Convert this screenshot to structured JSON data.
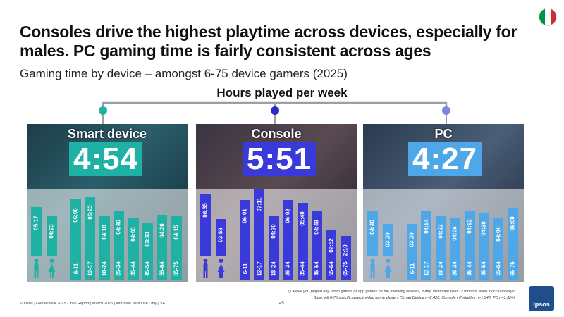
{
  "headline": "Consoles drive the highest playtime across devices, especially for males. PC gaming time is fairly consistent across ages",
  "subtitle": "Gaming time by device – amongst 6-75 device gamers (2025)",
  "hours_title": "Hours played per week",
  "flag_colors": [
    "#009246",
    "#ffffff",
    "#ce2b37"
  ],
  "footer": {
    "left": "© Ipsos | GameTrack 2025 - Italy Report | March 2026 | Internal/Client Use Only | V4",
    "page": "45",
    "question": "Q. Have you played any video games or app games on the following devices, if any, within the past 12 months, even if occasionally?",
    "base": "Base: All 6-75 specific device video game players (Smart Device n=2,428, Console / Portables n=1,540, PC n=1,324)",
    "logo": "Ipsos"
  },
  "chart_data": {
    "type": "bar",
    "title": "Hours played per week",
    "categories": [
      "Male",
      "Female",
      "6-11",
      "12-17",
      "18-24",
      "25-34",
      "35-44",
      "45-54",
      "55-64",
      "65-75"
    ],
    "category_labels": [
      "",
      "",
      "6-11",
      "12-17",
      "18-24",
      "25-34",
      "35-44",
      "45-54",
      "55-64",
      "65-75"
    ],
    "value_unit": "hours per week (h:mm)",
    "panels": [
      {
        "name": "Smart device",
        "total": "4:54",
        "color": "#1fb2a4",
        "node_color": "#1fb2a4",
        "labels": [
          "05:17",
          "04:23",
          "06:06",
          "06:23",
          "04:18",
          "04:46",
          "04:03",
          "03:33",
          "04:26",
          "04:15"
        ],
        "values": [
          5.28,
          4.38,
          6.1,
          6.38,
          4.3,
          4.77,
          4.05,
          3.55,
          4.43,
          4.25
        ]
      },
      {
        "name": "Console",
        "total": "5:51",
        "color": "#3a3adb",
        "node_color": "#2d2ac4",
        "labels": [
          "06:35",
          "03:59",
          "06:01",
          "07:11",
          "04:20",
          "06:02",
          "05:40",
          "04:49",
          "02:52",
          "02:10"
        ],
        "values": [
          6.58,
          3.98,
          6.02,
          7.18,
          4.33,
          6.03,
          5.67,
          4.82,
          2.87,
          2.17
        ]
      },
      {
        "name": "PC",
        "total": "4:27",
        "color": "#4ea8e8",
        "node_color": "#7b86e6",
        "labels": [
          "04:46",
          "03:29",
          "03:29",
          "04:54",
          "04:22",
          "04:06",
          "04:52",
          "04:38",
          "04:04",
          "05:09"
        ],
        "values": [
          4.77,
          3.48,
          3.48,
          4.9,
          4.37,
          4.1,
          4.87,
          4.63,
          4.07,
          5.15
        ]
      }
    ]
  }
}
